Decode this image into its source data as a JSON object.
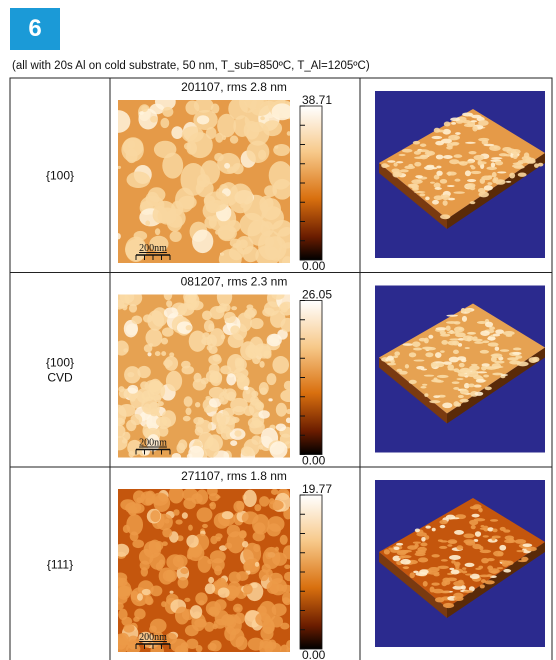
{
  "badge": "6",
  "caption": "(all with 20s Al on cold substrate, 50 nm, T_sub=850ºC, T_Al=1205ºC)",
  "rows": [
    {
      "label": [
        "{100}"
      ],
      "title": "201107, rms 2.8 nm",
      "scale_max": "38.71",
      "scale_min": "0.00",
      "scale_bar": "200nm"
    },
    {
      "label": [
        "{100}",
        "CVD"
      ],
      "title": "081207, rms 2.3 nm",
      "scale_max": "26.05",
      "scale_min": "0.00",
      "scale_bar": "200nm"
    },
    {
      "label": [
        "{111}"
      ],
      "title": "271107, rms 1.8 nm",
      "scale_max": "19.77",
      "scale_min": "0.00",
      "scale_bar": "200nm"
    }
  ]
}
